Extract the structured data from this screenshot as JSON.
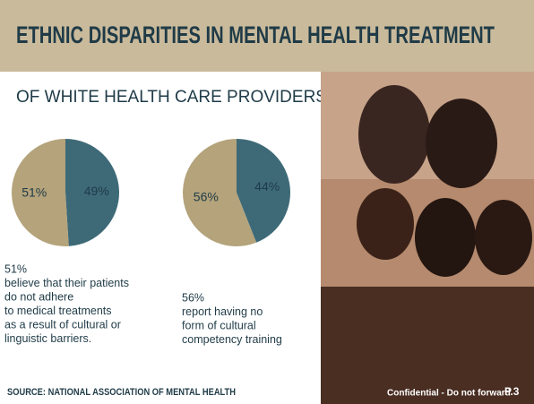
{
  "header": {
    "title": "ETHNIC DISPARITIES IN MENTAL HEALTH TREATMENT"
  },
  "subtitle": "OF WHITE HEALTH CARE PROVIDERS",
  "chart_data": [
    {
      "type": "pie",
      "series": [
        {
          "color": "#3e6a78",
          "values": [
            49,
            51
          ],
          "value_labels": [
            "49%",
            "51%"
          ]
        }
      ],
      "colors": [
        "#3e6a78",
        "#b4a37b"
      ]
    },
    {
      "type": "pie",
      "series": [
        {
          "color": "#3e6a78",
          "values": [
            44,
            56
          ],
          "value_labels": [
            "44%",
            "56%"
          ]
        }
      ],
      "colors": [
        "#3e6a78",
        "#b4a37b"
      ]
    }
  ],
  "captions": [
    {
      "lines": [
        "51%",
        "believe that their patients",
        "do not adhere",
        "to medical treatments",
        "as a result of cultural or",
        "linguistic barriers."
      ]
    },
    {
      "lines": [
        "56%",
        "report having no",
        "form of cultural",
        "competency training"
      ]
    }
  ],
  "source": "SOURCE: NATIONAL ASSOCIATION OF MENTAL HEALTH",
  "footer": {
    "note": "Confidential - Do not forward",
    "page": "P.3"
  }
}
